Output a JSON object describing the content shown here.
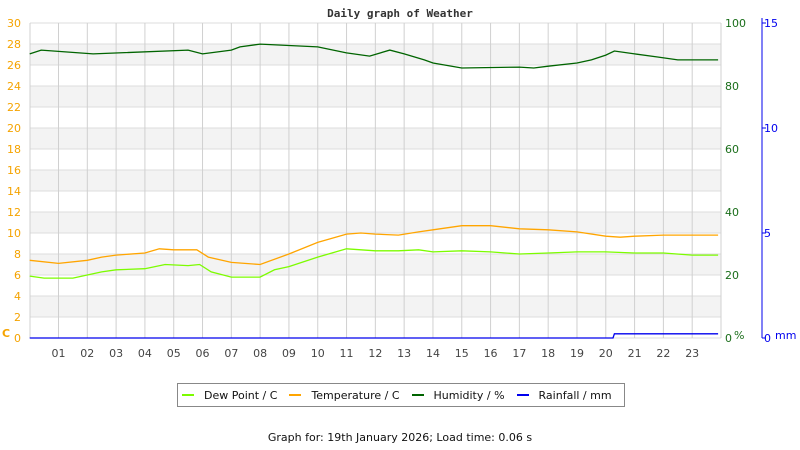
{
  "chart_data": {
    "type": "line",
    "title": "Daily graph of Weather",
    "x_ticks": [
      "01",
      "02",
      "03",
      "04",
      "05",
      "06",
      "07",
      "08",
      "09",
      "10",
      "11",
      "12",
      "13",
      "14",
      "15",
      "16",
      "17",
      "18",
      "19",
      "20",
      "21",
      "22",
      "23"
    ],
    "xlim": [
      0,
      24
    ],
    "grid": true,
    "legend_position": "bottom",
    "axes": {
      "left": {
        "unit": "C",
        "range": [
          0,
          30
        ],
        "ticks": [
          0,
          2,
          4,
          6,
          8,
          10,
          12,
          14,
          16,
          18,
          20,
          22,
          24,
          26,
          28,
          30
        ],
        "color": "#f5a300"
      },
      "right": {
        "unit": "%",
        "range": [
          0,
          100
        ],
        "ticks": [
          0,
          20,
          40,
          60,
          80,
          100
        ],
        "color": "#1a6e1a"
      },
      "rain": {
        "unit": "mm",
        "range": [
          0,
          15
        ],
        "ticks": [
          0,
          5,
          10,
          15
        ],
        "color": "#0000ee"
      }
    },
    "series": [
      {
        "name": "Dew Point / C",
        "color": "#7cfc00",
        "axis": "left",
        "x": [
          0,
          0.5,
          1.5,
          2,
          2.5,
          3,
          4,
          4.7,
          5.5,
          5.9,
          6.3,
          7,
          8,
          8.5,
          9,
          10,
          11,
          12,
          12.8,
          13.5,
          14,
          15,
          16,
          17,
          18,
          19,
          20,
          21,
          22,
          23,
          23.9
        ],
        "y": [
          5.9,
          5.7,
          5.7,
          6.0,
          6.3,
          6.5,
          6.6,
          7.0,
          6.9,
          7.0,
          6.3,
          5.8,
          5.8,
          6.5,
          6.8,
          7.7,
          8.5,
          8.3,
          8.3,
          8.4,
          8.2,
          8.3,
          8.2,
          8.0,
          8.1,
          8.2,
          8.2,
          8.1,
          8.1,
          7.9,
          7.9
        ]
      },
      {
        "name": "Temperature / C",
        "color": "#ffa500",
        "axis": "left",
        "x": [
          0,
          1,
          2,
          2.5,
          3,
          4,
          4.5,
          5,
          5.8,
          6.2,
          7,
          8,
          9,
          10,
          11,
          11.5,
          12,
          12.8,
          13.5,
          14,
          15,
          16,
          17,
          18,
          19,
          20,
          20.5,
          21,
          22,
          23.9
        ],
        "y": [
          7.4,
          7.1,
          7.4,
          7.7,
          7.9,
          8.1,
          8.5,
          8.4,
          8.4,
          7.7,
          7.2,
          7.0,
          8.0,
          9.1,
          9.9,
          10.0,
          9.9,
          9.8,
          10.1,
          10.3,
          10.7,
          10.7,
          10.4,
          10.3,
          10.1,
          9.7,
          9.6,
          9.7,
          9.8,
          9.8
        ]
      },
      {
        "name": "Humidity / %",
        "color": "#006400",
        "axis": "right",
        "x": [
          0,
          0.4,
          2.2,
          5.5,
          6,
          7,
          7.3,
          8,
          10,
          11,
          11.8,
          12.5,
          13,
          13.7,
          14,
          15,
          17,
          17.5,
          18,
          19,
          19.5,
          20,
          20.3,
          21,
          21.8,
          22.5,
          23.9
        ],
        "y": [
          90.2,
          91.4,
          90.2,
          91.4,
          90.2,
          91.4,
          92.4,
          93.3,
          92.4,
          90.5,
          89.5,
          91.4,
          90.2,
          88.3,
          87.3,
          85.7,
          86.0,
          85.7,
          86.3,
          87.3,
          88.3,
          89.8,
          91.1,
          90.2,
          89.2,
          88.3,
          88.3
        ]
      },
      {
        "name": "Rainfall / mm",
        "color": "#0000ee",
        "axis": "rain",
        "x": [
          0,
          20.25,
          20.3,
          23.9
        ],
        "y": [
          0,
          0,
          0.2,
          0.2
        ]
      }
    ]
  },
  "footer": "Graph for: 19th January 2026; Load time: 0.06 s"
}
